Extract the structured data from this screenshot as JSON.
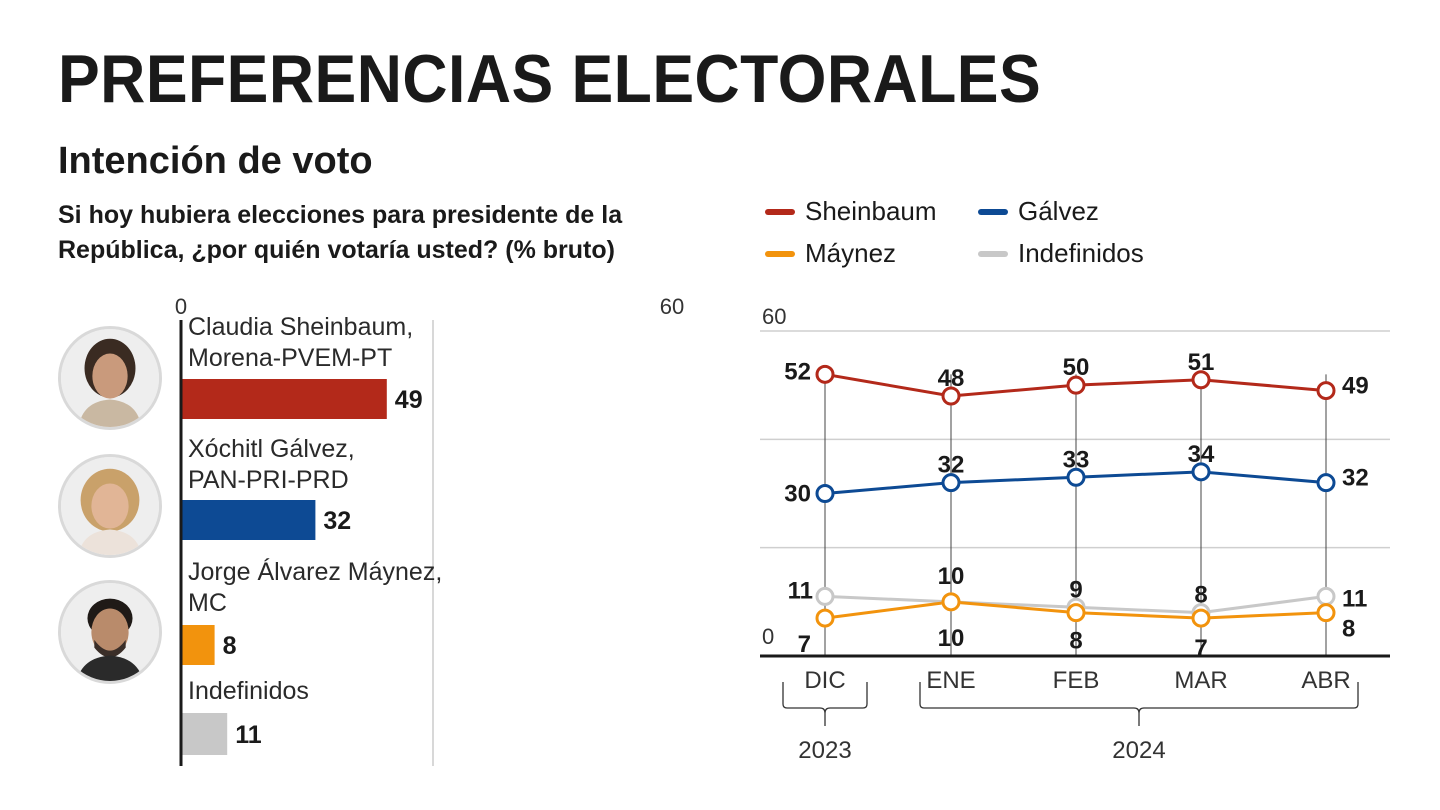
{
  "header": {
    "title": "PREFERENCIAS ELECTORALES",
    "subtitle": "Intención de voto",
    "question": "Si hoy hubiera elecciones para presidente de la República, ¿por quién votaría usted? (% bruto)"
  },
  "legend": [
    {
      "label": "Sheinbaum",
      "color": "#b3291a"
    },
    {
      "label": "Gálvez",
      "color": "#0d4a94"
    },
    {
      "label": "Máynez",
      "color": "#f2930d"
    },
    {
      "label": "Indefinidos",
      "color": "#c8c8c8"
    }
  ],
  "chart_data": [
    {
      "type": "bar",
      "orientation": "horizontal",
      "xlim": [
        0,
        60
      ],
      "tick_labels": [
        "0",
        "60"
      ],
      "categories": [
        {
          "line1": "Claudia Sheinbaum,",
          "line2": "Morena-PVEM-PT",
          "photo": "candidate-sheinbaum"
        },
        {
          "line1": "Xóchitl Gálvez,",
          "line2": "PAN-PRI-PRD",
          "photo": "candidate-galvez"
        },
        {
          "line1": "Jorge Álvarez Máynez,",
          "line2": "MC",
          "photo": "candidate-maynez"
        },
        {
          "line1": "Indefinidos",
          "line2": "",
          "photo": ""
        }
      ],
      "values": [
        49,
        32,
        8,
        11
      ],
      "colors": [
        "#b3291a",
        "#0d4a94",
        "#f2930d",
        "#c8c8c8"
      ]
    },
    {
      "type": "line",
      "ylim": [
        0,
        60
      ],
      "ytick_labels": [
        "0",
        "60"
      ],
      "grid": true,
      "categories": [
        "DIC",
        "ENE",
        "FEB",
        "MAR",
        "ABR"
      ],
      "year_groups": [
        {
          "label": "2023",
          "from": 0,
          "to": 0
        },
        {
          "label": "2024",
          "from": 1,
          "to": 4
        }
      ],
      "series": [
        {
          "name": "Sheinbaum",
          "color": "#b3291a",
          "values": [
            52,
            48,
            50,
            51,
            49
          ]
        },
        {
          "name": "Gálvez",
          "color": "#0d4a94",
          "values": [
            30,
            32,
            33,
            34,
            32
          ]
        },
        {
          "name": "Indefinidos",
          "color": "#c8c8c8",
          "values": [
            11,
            10,
            9,
            8,
            11
          ]
        },
        {
          "name": "Máynez",
          "color": "#f2930d",
          "values": [
            7,
            10,
            8,
            7,
            8
          ]
        }
      ]
    }
  ]
}
